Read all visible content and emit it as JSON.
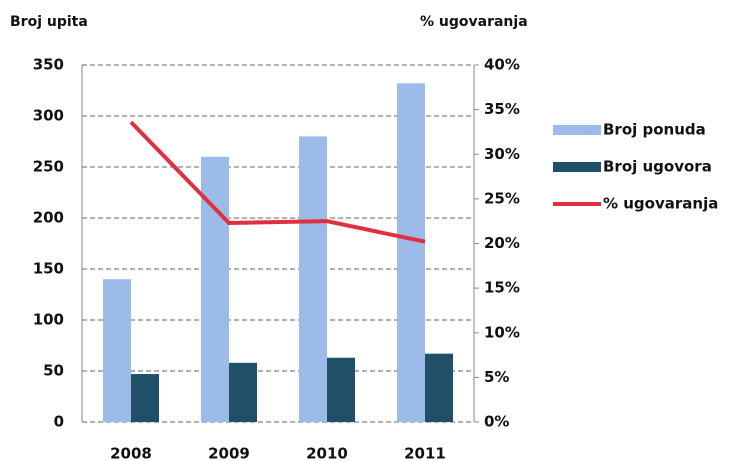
{
  "chart_data": {
    "type": "bar",
    "y_title": "Broj upita",
    "y2_title": "% ugovaranja",
    "categories": [
      "2008",
      "2009",
      "2010",
      "2011"
    ],
    "series": [
      {
        "name": "Broj ponuda",
        "color": "#9dbbe8",
        "values": [
          140,
          260,
          280,
          332
        ]
      },
      {
        "name": "Broj ugovora",
        "color": "#1f5068",
        "values": [
          47,
          58,
          63,
          67
        ]
      },
      {
        "name": "% ugovaranja",
        "color": "#e0303f",
        "type": "line",
        "axis": "y2",
        "values": [
          33.6,
          22.3,
          22.5,
          20.2
        ]
      }
    ],
    "ylim": [
      0,
      350
    ],
    "yticks": [
      0,
      50,
      100,
      150,
      200,
      250,
      300,
      350
    ],
    "y2lim": [
      0,
      40
    ],
    "y2ticks": [
      {
        "value": 0,
        "label": "0%"
      },
      {
        "value": 5,
        "label": "5%"
      },
      {
        "value": 10,
        "label": "10%"
      },
      {
        "value": 15,
        "label": "15%"
      },
      {
        "value": 20,
        "label": "20%"
      },
      {
        "value": 25,
        "label": "25%"
      },
      {
        "value": 30,
        "label": "30%"
      },
      {
        "value": 35,
        "label": "35%"
      },
      {
        "value": 40,
        "label": "40%"
      }
    ],
    "grid": true,
    "legend": "right"
  }
}
